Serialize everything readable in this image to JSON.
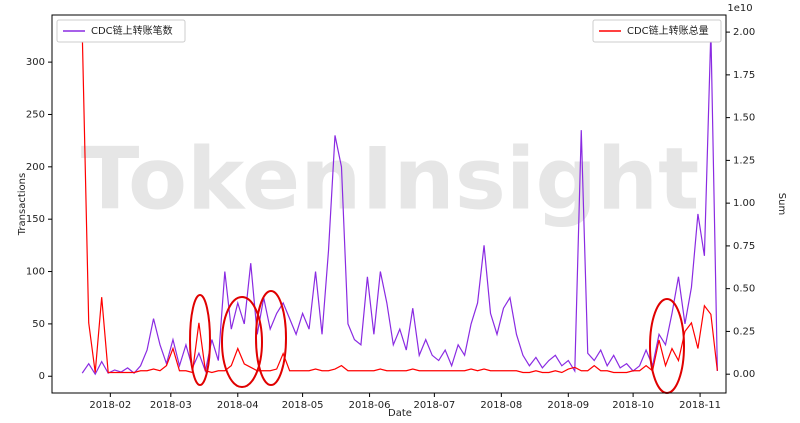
{
  "chart_data": {
    "type": "line",
    "watermark": "TokenInsight",
    "xlabel": "Date",
    "ylabel": "Transactions",
    "y2label": "Sum",
    "y2_offset_label": "1e10",
    "x": [
      19,
      22,
      25,
      28,
      31,
      34,
      37,
      40,
      43,
      46,
      49,
      52,
      55,
      58,
      61,
      64,
      67,
      70,
      73,
      76,
      79,
      82,
      85,
      88,
      91,
      94,
      97,
      100,
      103,
      106,
      109,
      112,
      115,
      118,
      121,
      124,
      127,
      130,
      133,
      136,
      139,
      142,
      145,
      148,
      151,
      154,
      157,
      160,
      163,
      166,
      169,
      172,
      175,
      178,
      181,
      184,
      187,
      190,
      193,
      196,
      199,
      202,
      205,
      208,
      211,
      214,
      217,
      220,
      223,
      226,
      229,
      232,
      235,
      238,
      241,
      244,
      247,
      250,
      253,
      256,
      259,
      262,
      265,
      268,
      271,
      274,
      277,
      280,
      283,
      286,
      289,
      292,
      295,
      298,
      301,
      304,
      307,
      310,
      313
    ],
    "xlim": [
      5,
      317
    ],
    "xticks": [
      {
        "value": 32,
        "label": "2018-02"
      },
      {
        "value": 60,
        "label": "2018-03"
      },
      {
        "value": 91,
        "label": "2018-04"
      },
      {
        "value": 121,
        "label": "2018-05"
      },
      {
        "value": 152,
        "label": "2018-06"
      },
      {
        "value": 182,
        "label": "2018-07"
      },
      {
        "value": 213,
        "label": "2018-08"
      },
      {
        "value": 244,
        "label": "2018-09"
      },
      {
        "value": 274,
        "label": "2018-10"
      },
      {
        "value": 305,
        "label": "2018-11"
      }
    ],
    "ylim": [
      -16,
      345
    ],
    "yticks": [
      0,
      50,
      100,
      150,
      200,
      250,
      300
    ],
    "y2lim": [
      -0.11,
      2.1
    ],
    "y2ticks": [
      {
        "value": 0,
        "label": "0.00"
      },
      0.25,
      {
        "value": 0.5,
        "label": "0.50"
      },
      0.75,
      {
        "value": 1,
        "label": "1.00"
      },
      1.25,
      {
        "value": 1.5,
        "label": "1.50"
      },
      1.75,
      {
        "value": 2,
        "label": "2.00"
      }
    ],
    "series": [
      {
        "name": "CDC链上转账笔数",
        "color": "#8a2be2",
        "legend": "upper left",
        "values": [
          3,
          12,
          2,
          14,
          3,
          6,
          4,
          8,
          3,
          10,
          25,
          55,
          30,
          12,
          35,
          10,
          30,
          8,
          22,
          5,
          35,
          15,
          100,
          45,
          70,
          50,
          108,
          40,
          75,
          45,
          60,
          70,
          55,
          40,
          60,
          45,
          100,
          40,
          120,
          230,
          200,
          50,
          35,
          30,
          95,
          40,
          100,
          70,
          30,
          45,
          25,
          65,
          20,
          35,
          20,
          15,
          25,
          10,
          30,
          20,
          50,
          70,
          125,
          60,
          40,
          65,
          75,
          40,
          20,
          10,
          18,
          8,
          15,
          20,
          10,
          15,
          5,
          235,
          22,
          15,
          25,
          10,
          20,
          8,
          12,
          5,
          10,
          25,
          10,
          40,
          30,
          60,
          95,
          50,
          85,
          155,
          115,
          330,
          5
        ]
      },
      {
        "name": "CDC链上转账总量",
        "color": "#ff0000",
        "legend": "upper right",
        "axis": "y2",
        "values": [
          2.0,
          0.3,
          0.01,
          0.45,
          0.01,
          0.01,
          0.01,
          0.01,
          0.01,
          0.02,
          0.02,
          0.03,
          0.02,
          0.05,
          0.15,
          0.02,
          0.02,
          0.01,
          0.3,
          0.02,
          0.01,
          0.02,
          0.02,
          0.05,
          0.15,
          0.06,
          0.04,
          0.02,
          0.02,
          0.02,
          0.03,
          0.12,
          0.02,
          0.02,
          0.02,
          0.02,
          0.03,
          0.02,
          0.02,
          0.03,
          0.05,
          0.02,
          0.02,
          0.02,
          0.02,
          0.02,
          0.03,
          0.02,
          0.02,
          0.02,
          0.02,
          0.03,
          0.02,
          0.02,
          0.02,
          0.02,
          0.02,
          0.02,
          0.02,
          0.02,
          0.03,
          0.02,
          0.03,
          0.02,
          0.02,
          0.02,
          0.02,
          0.02,
          0.01,
          0.01,
          0.02,
          0.01,
          0.01,
          0.02,
          0.01,
          0.03,
          0.04,
          0.02,
          0.02,
          0.05,
          0.02,
          0.02,
          0.01,
          0.01,
          0.01,
          0.02,
          0.02,
          0.05,
          0.02,
          0.2,
          0.05,
          0.15,
          0.08,
          0.25,
          0.3,
          0.15,
          0.4,
          0.35,
          0.02
        ]
      }
    ]
  }
}
